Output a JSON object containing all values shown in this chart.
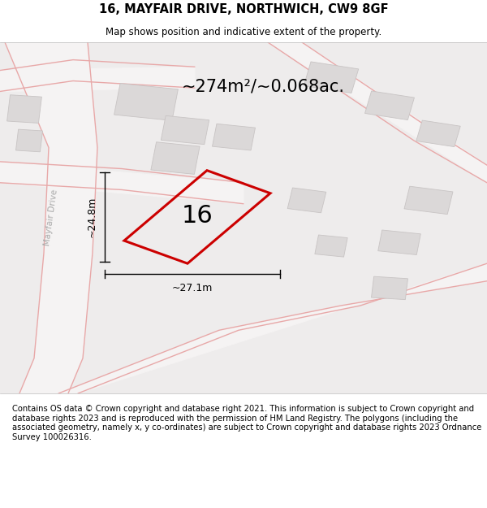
{
  "title": "16, MAYFAIR DRIVE, NORTHWICH, CW9 8GF",
  "subtitle": "Map shows position and indicative extent of the property.",
  "title_fontsize": 10.5,
  "subtitle_fontsize": 8.5,
  "area_text": "~274m²/~0.068ac.",
  "area_fontsize": 15,
  "label_16": "16",
  "label_16_fontsize": 22,
  "dim_width": "~27.1m",
  "dim_height": "~24.8m",
  "dim_fontsize": 9,
  "map_bg": "#eeecec",
  "road_line_color": "#e8a8a8",
  "building_fill": "#dbd8d8",
  "building_edge": "#c8c4c4",
  "plot_color": "#cc0000",
  "footer_text": "Contains OS data © Crown copyright and database right 2021. This information is subject to Crown copyright and database rights 2023 and is reproduced with the permission of HM Land Registry. The polygons (including the associated geometry, namely x, y co-ordinates) are subject to Crown copyright and database rights 2023 Ordnance Survey 100026316.",
  "footer_fontsize": 7.2,
  "road_label_mayfair": "Mayfair Drive",
  "road_label_fontsize": 7.5,
  "road_bg": "#f5f3f3",
  "white": "#ffffff"
}
